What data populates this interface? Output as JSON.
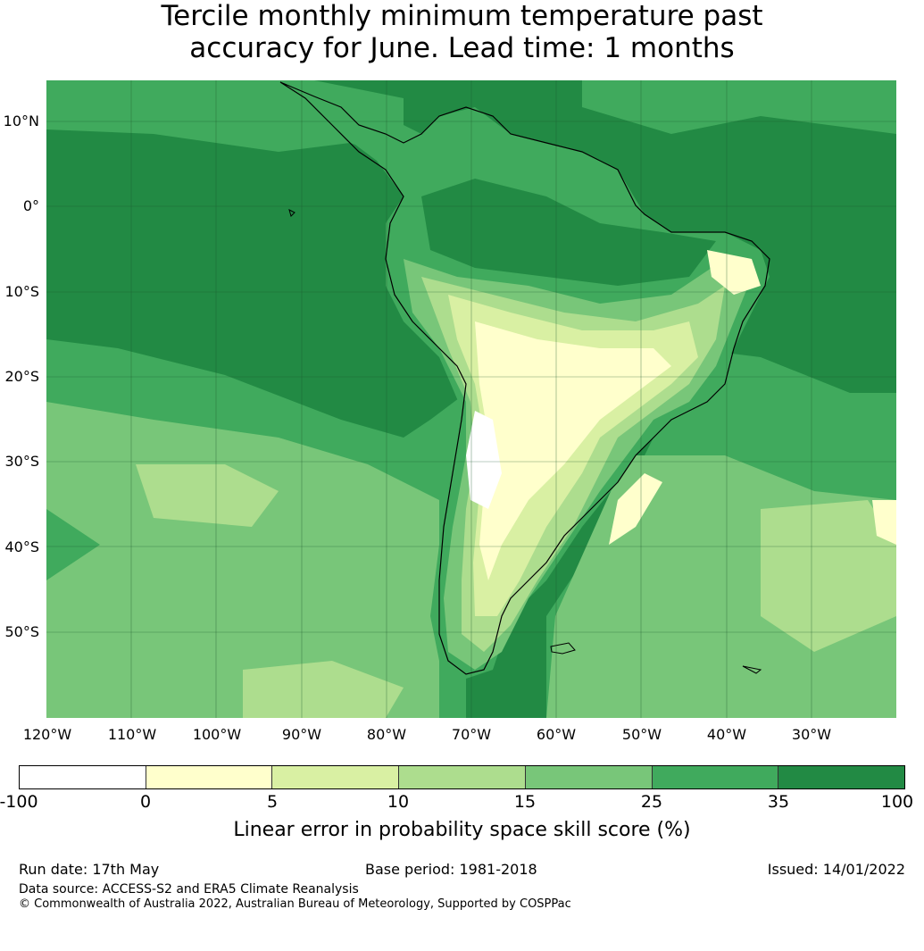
{
  "title": {
    "line1": "Tercile monthly minimum temperature past",
    "line2": "accuracy for June. Lead time: 1 months"
  },
  "map": {
    "lat_labels": [
      "10°N",
      "0°",
      "10°S",
      "20°S",
      "30°S",
      "40°S",
      "50°S"
    ],
    "lon_labels": [
      "120°W",
      "110°W",
      "100°W",
      "90°W",
      "80°W",
      "70°W",
      "60°W",
      "50°W",
      "40°W",
      "30°W"
    ],
    "colors": {
      "ocean_high": "#228a44",
      "band_25_35": "#40aa5d",
      "band_15_25": "#78c679",
      "band_10_15": "#addd8e",
      "band_5_10": "#d9f0a3",
      "band_0_5": "#ffffcc",
      "band_neg": "#ffffff",
      "coast": "#000000"
    }
  },
  "colorbar": {
    "ticks": [
      "-100",
      "0",
      "5",
      "10",
      "15",
      "25",
      "35",
      "100"
    ],
    "colors": [
      "#ffffff",
      "#ffffcc",
      "#d9f0a3",
      "#addd8e",
      "#78c679",
      "#40aa5d",
      "#228a44"
    ],
    "label": "Linear error in probability space skill score (%)"
  },
  "footer": {
    "run_date": "Run date: 17th May",
    "base_period": "Base period: 1981-2018",
    "issued": "Issued: 14/01/2022",
    "data_source": "Data source: ACCESS-S2 and ERA5 Climate Reanalysis",
    "copyright": "© Commonwealth of Australia 2022, Australian Bureau of Meteorology, Supported by COSPPac"
  }
}
